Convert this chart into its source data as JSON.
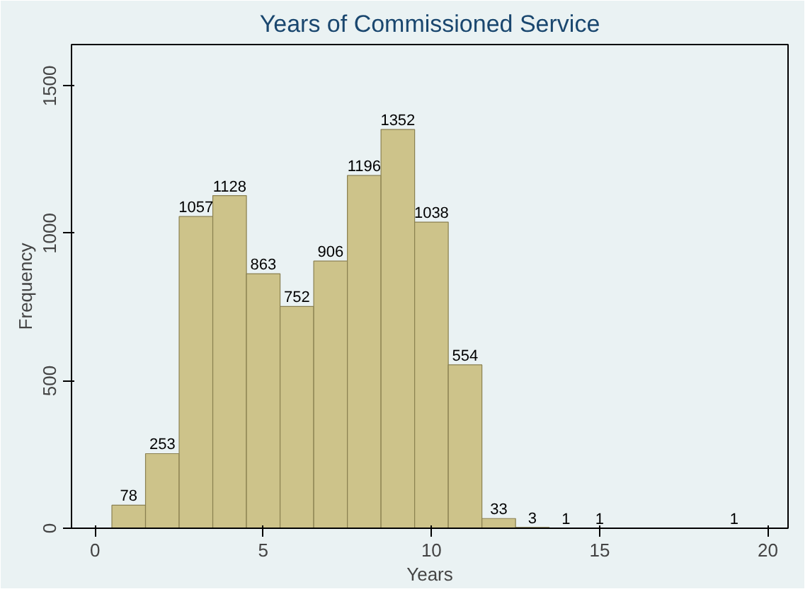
{
  "chart_data": {
    "type": "histogram",
    "title": "Years of Commissioned Service",
    "xlabel": "Years",
    "ylabel": "Frequency",
    "bins": [
      0.5,
      1.5,
      2.5,
      3.5,
      4.5,
      5.5,
      6.5,
      7.5,
      8.5,
      9.5,
      10.5,
      11.5,
      12.5,
      13.5,
      14.5,
      15.5,
      16.5,
      17.5,
      18.5,
      19.5
    ],
    "values": [
      78,
      253,
      1057,
      1128,
      863,
      752,
      906,
      1196,
      1352,
      1038,
      554,
      33,
      3,
      1,
      1,
      0,
      0,
      0,
      1
    ],
    "value_labels": [
      "78",
      "253",
      "1057",
      "1128",
      "863",
      "752",
      "906",
      "1196",
      "1352",
      "1038",
      "554",
      "33",
      "3",
      "1",
      "1",
      null,
      null,
      null,
      "1"
    ],
    "color": "#cdc38a",
    "xlim": [
      -0.7,
      20.6
    ],
    "ylim": [
      0,
      1640
    ],
    "xticks": [
      0,
      5,
      10,
      15,
      20
    ],
    "yticks": [
      0,
      500,
      1000,
      1500
    ],
    "grid": false
  }
}
